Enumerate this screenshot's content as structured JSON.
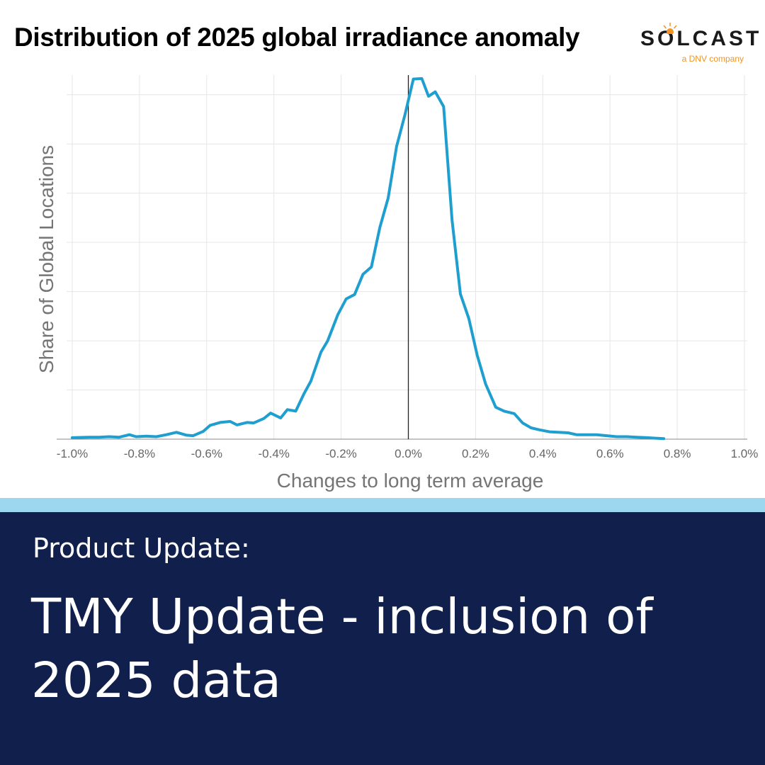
{
  "header": {
    "title": "Distribution of 2025 global irradiance anomaly"
  },
  "brand": {
    "name": "SOLCAST",
    "tagline": "a DNV company",
    "icon": "sun-icon",
    "accent_color": "#f29425"
  },
  "colors": {
    "line": "#1f9fd0",
    "divider": "#9cd6ef",
    "banner": "#101f4b",
    "grid": "#e6e6e6",
    "zero_line": "#222222"
  },
  "chart_data": {
    "type": "line",
    "title": "Distribution of 2025 global irradiance anomaly",
    "xlabel": "Changes to long term average",
    "ylabel": "Share of Global Locations",
    "xlim": [
      -1.0,
      1.0
    ],
    "ylim": [
      0,
      7.4
    ],
    "grid": true,
    "legend": "none",
    "x_ticks": [
      "-1.0%",
      "-0.8%",
      "-0.6%",
      "-0.4%",
      "-0.2%",
      "0.0%",
      "0.2%",
      "0.4%",
      "0.6%",
      "0.8%",
      "1.0%"
    ],
    "x_tick_values": [
      -1.0,
      -0.8,
      -0.6,
      -0.4,
      -0.2,
      0.0,
      0.2,
      0.4,
      0.6,
      0.8,
      1.0
    ],
    "y_gridlines": [
      1,
      2,
      3,
      4,
      5,
      6,
      7
    ],
    "vertical_reference_line": 0.0,
    "series": [
      {
        "x": [
          -1.0,
          -0.95,
          -0.92,
          -0.89,
          -0.86,
          -0.83,
          -0.81,
          -0.78,
          -0.75,
          -0.72,
          -0.69,
          -0.66,
          -0.64,
          -0.61,
          -0.59,
          -0.56,
          -0.53,
          -0.51,
          -0.48,
          -0.46,
          -0.43,
          -0.41,
          -0.38,
          -0.36,
          -0.335,
          -0.31,
          -0.29,
          -0.26,
          -0.24,
          -0.21,
          -0.185,
          -0.16,
          -0.135,
          -0.11,
          -0.085,
          -0.06,
          -0.035,
          -0.01,
          0.015,
          0.04,
          0.06,
          0.08,
          0.105,
          0.13,
          0.155,
          0.18,
          0.205,
          0.23,
          0.26,
          0.285,
          0.315,
          0.34,
          0.365,
          0.39,
          0.42,
          0.445,
          0.475,
          0.5,
          0.53,
          0.56,
          0.59,
          0.62,
          0.65,
          0.68,
          0.71,
          0.735,
          0.76
        ],
        "values": [
          0.03,
          0.04,
          0.04,
          0.05,
          0.04,
          0.09,
          0.05,
          0.06,
          0.05,
          0.09,
          0.14,
          0.08,
          0.07,
          0.16,
          0.28,
          0.34,
          0.36,
          0.29,
          0.34,
          0.33,
          0.42,
          0.53,
          0.43,
          0.6,
          0.57,
          0.93,
          1.18,
          1.77,
          2.0,
          2.53,
          2.85,
          2.94,
          3.35,
          3.5,
          4.3,
          4.9,
          5.95,
          6.6,
          7.32,
          7.33,
          6.97,
          7.06,
          6.76,
          4.45,
          2.95,
          2.45,
          1.7,
          1.12,
          0.65,
          0.57,
          0.52,
          0.33,
          0.23,
          0.19,
          0.15,
          0.14,
          0.13,
          0.09,
          0.09,
          0.09,
          0.07,
          0.05,
          0.05,
          0.04,
          0.03,
          0.02,
          0.01
        ]
      }
    ]
  },
  "banner": {
    "kicker": "Product Update:",
    "headline": "TMY Update - inclusion of 2025 data"
  }
}
